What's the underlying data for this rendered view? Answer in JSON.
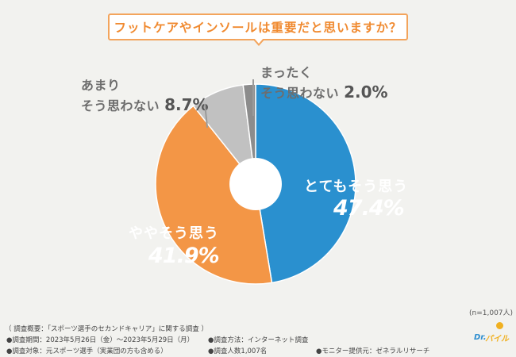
{
  "title": "フットケアやインソールは重要だと思いますか？",
  "chart_data": {
    "type": "donut",
    "title": "フットケアやインソールは重要だと思いますか？",
    "unit": "%",
    "slices": [
      {
        "label": "とてもそう思う",
        "value": 47.4,
        "value_text": "47.4%",
        "color": "#2a90cf"
      },
      {
        "label": "ややそう思う",
        "value": 41.9,
        "value_text": "41.9%",
        "color": "#f39646"
      },
      {
        "label": "あまりそう思わない",
        "value": 8.7,
        "value_text": "8.7%",
        "color": "#c1c1c1"
      },
      {
        "label": "まったくそう思わない",
        "value": 2.0,
        "value_text": "2.0%",
        "color": "#8c8c8c"
      }
    ]
  },
  "labels": {
    "s0": {
      "line1": "とてもそう思う",
      "pct": "47.4%"
    },
    "s1": {
      "line1": "ややそう思う",
      "pct": "41.9%"
    },
    "s2": {
      "line1": "あまり",
      "line2": "そう思わない",
      "pct": "8.7%"
    },
    "s3": {
      "line1": "まったく",
      "line2": "そう思わない",
      "pct": "2.0%"
    }
  },
  "sample_size": "(n=1,007人)",
  "footer": {
    "overview": "（ 調査概要：「スポーツ選手のセカンドキャリア」に関する調査 ）",
    "period": "●調査期間：2023年5月26日（金）～2023年5月29日（月）",
    "method": "●調査方法：インターネット調査",
    "target": "●調査対象：元スポーツ選手（実業団の方も含める）",
    "count": "●調査人数1,007名",
    "provider": "●モニター提供元：ゼネラルリサーチ"
  },
  "logo": {
    "text_a": "Dr.",
    "text_b": "パイル"
  }
}
